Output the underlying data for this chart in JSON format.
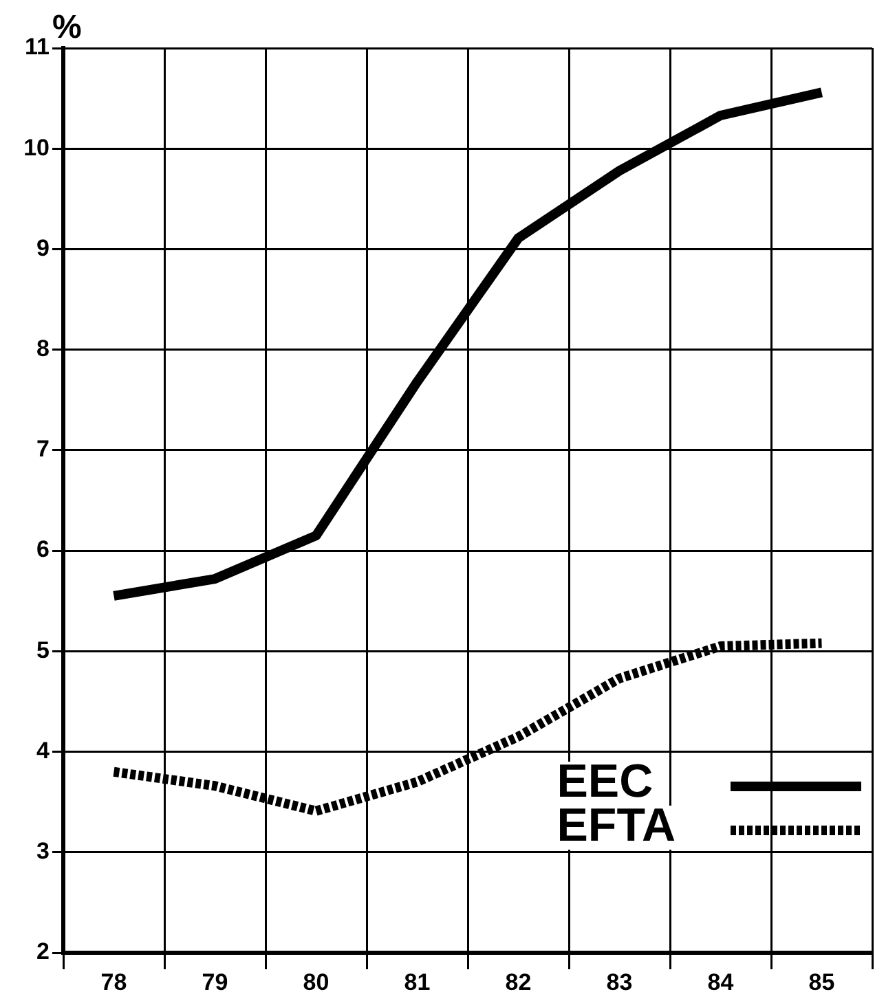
{
  "chart_data": {
    "type": "line",
    "ylabel": "%",
    "categories": [
      "78",
      "79",
      "80",
      "81",
      "82",
      "83",
      "84",
      "85"
    ],
    "series": [
      {
        "name": "EEC",
        "color": "#000000",
        "line_style": "solid",
        "values": [
          5.55,
          5.72,
          6.15,
          7.68,
          9.11,
          9.78,
          10.33,
          10.56
        ]
      },
      {
        "name": "EFTA",
        "color": "#000000",
        "line_style": "dotted",
        "values": [
          3.8,
          3.66,
          3.41,
          3.7,
          4.15,
          4.73,
          5.05,
          5.08
        ]
      }
    ],
    "ylim": [
      2,
      11
    ],
    "yticks": [
      2,
      3,
      4,
      5,
      6,
      7,
      8,
      9,
      10,
      11
    ],
    "grid": true,
    "legend": "bottom right",
    "marker": "none"
  }
}
